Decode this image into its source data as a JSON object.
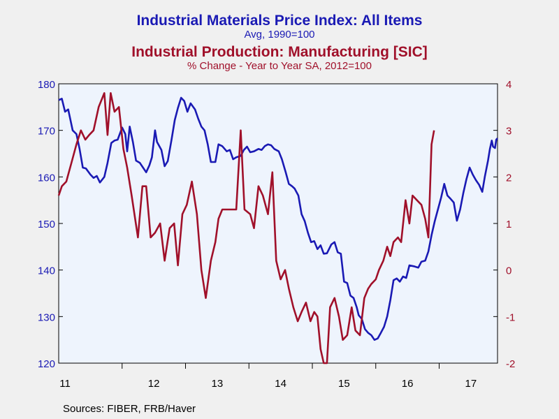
{
  "titles": {
    "line1": "Industrial Materials Price Index: All Items",
    "line2": "Avg, 1990=100",
    "line3": "Industrial Production: Manufacturing [SIC]",
    "line4": "% Change - Year to Year     SA, 2012=100"
  },
  "source": "Sources:  FIBER, FRB/Haver",
  "colors": {
    "left": "#1a1ab4",
    "right": "#a0102a",
    "plot_bg": "#eef4fd",
    "frame": "#000000"
  },
  "chart_data": {
    "type": "line",
    "x_labels": [
      "11",
      "12",
      "13",
      "14",
      "15",
      "16",
      "17"
    ],
    "x_domain": [
      2011.0,
      2017.92
    ],
    "y_left": {
      "ylim": [
        120,
        180
      ],
      "ticks": [
        "120",
        "130",
        "140",
        "150",
        "160",
        "170",
        "180"
      ]
    },
    "y_right": {
      "ylim": [
        -2,
        4
      ],
      "ticks": [
        "-2",
        "-1",
        "0",
        "1",
        "2",
        "3",
        "4"
      ]
    },
    "grid": false,
    "legend": "none",
    "series": [
      {
        "axis": "left",
        "color": "#1a1ab4",
        "points": [
          [
            2011.0,
            176.5
          ],
          [
            2011.05,
            176.8
          ],
          [
            2011.1,
            174.0
          ],
          [
            2011.15,
            174.5
          ],
          [
            2011.22,
            170.0
          ],
          [
            2011.28,
            169.2
          ],
          [
            2011.33,
            166.0
          ],
          [
            2011.38,
            162.0
          ],
          [
            2011.43,
            161.8
          ],
          [
            2011.5,
            160.5
          ],
          [
            2011.55,
            159.8
          ],
          [
            2011.6,
            160.2
          ],
          [
            2011.65,
            158.8
          ],
          [
            2011.72,
            160.0
          ],
          [
            2011.77,
            163.0
          ],
          [
            2011.83,
            167.3
          ],
          [
            2011.88,
            167.8
          ],
          [
            2011.93,
            168.0
          ],
          [
            2012.0,
            170.6
          ],
          [
            2012.05,
            169.2
          ],
          [
            2012.08,
            165.5
          ],
          [
            2012.12,
            170.8
          ],
          [
            2012.17,
            167.5
          ],
          [
            2012.22,
            163.5
          ],
          [
            2012.28,
            163.0
          ],
          [
            2012.33,
            162.0
          ],
          [
            2012.38,
            161.0
          ],
          [
            2012.43,
            162.5
          ],
          [
            2012.47,
            164.2
          ],
          [
            2012.52,
            170.0
          ],
          [
            2012.55,
            167.5
          ],
          [
            2012.62,
            165.8
          ],
          [
            2012.67,
            162.3
          ],
          [
            2012.72,
            163.4
          ],
          [
            2012.78,
            168.0
          ],
          [
            2012.83,
            172.2
          ],
          [
            2012.88,
            174.8
          ],
          [
            2012.93,
            177.0
          ],
          [
            2012.98,
            176.3
          ],
          [
            2013.03,
            174.0
          ],
          [
            2013.08,
            175.8
          ],
          [
            2013.15,
            174.5
          ],
          [
            2013.2,
            172.5
          ],
          [
            2013.25,
            170.8
          ],
          [
            2013.3,
            170.0
          ],
          [
            2013.35,
            167.0
          ],
          [
            2013.4,
            163.2
          ],
          [
            2013.47,
            163.2
          ],
          [
            2013.52,
            167.0
          ],
          [
            2013.58,
            166.6
          ],
          [
            2013.65,
            165.5
          ],
          [
            2013.7,
            165.8
          ],
          [
            2013.75,
            163.8
          ],
          [
            2013.8,
            164.2
          ],
          [
            2013.87,
            164.5
          ],
          [
            2013.92,
            165.8
          ],
          [
            2013.97,
            166.5
          ],
          [
            2014.02,
            165.3
          ],
          [
            2014.08,
            165.5
          ],
          [
            2014.15,
            166.0
          ],
          [
            2014.2,
            165.8
          ],
          [
            2014.25,
            166.6
          ],
          [
            2014.3,
            167.0
          ],
          [
            2014.35,
            166.8
          ],
          [
            2014.4,
            166.0
          ],
          [
            2014.47,
            165.5
          ],
          [
            2014.52,
            163.8
          ],
          [
            2014.58,
            161.0
          ],
          [
            2014.63,
            158.5
          ],
          [
            2014.68,
            158.0
          ],
          [
            2014.72,
            157.5
          ],
          [
            2014.78,
            156.0
          ],
          [
            2014.83,
            152.0
          ],
          [
            2014.88,
            150.5
          ],
          [
            2014.93,
            148.0
          ],
          [
            2014.98,
            146.0
          ],
          [
            2015.03,
            146.2
          ],
          [
            2015.08,
            144.5
          ],
          [
            2015.13,
            145.3
          ],
          [
            2015.18,
            143.5
          ],
          [
            2015.23,
            143.6
          ],
          [
            2015.3,
            145.5
          ],
          [
            2015.35,
            146.0
          ],
          [
            2015.4,
            143.8
          ],
          [
            2015.45,
            143.5
          ],
          [
            2015.5,
            137.5
          ],
          [
            2015.55,
            137.2
          ],
          [
            2015.6,
            134.5
          ],
          [
            2015.65,
            134.0
          ],
          [
            2015.7,
            132.0
          ],
          [
            2015.73,
            130.3
          ],
          [
            2015.78,
            129.5
          ],
          [
            2015.83,
            127.3
          ],
          [
            2015.88,
            126.5
          ],
          [
            2015.93,
            126.0
          ],
          [
            2015.98,
            125.0
          ],
          [
            2016.03,
            125.3
          ],
          [
            2016.08,
            126.5
          ],
          [
            2016.13,
            127.8
          ],
          [
            2016.18,
            130.0
          ],
          [
            2016.23,
            133.5
          ],
          [
            2016.28,
            137.8
          ],
          [
            2016.33,
            138.2
          ],
          [
            2016.38,
            137.5
          ],
          [
            2016.43,
            138.6
          ],
          [
            2016.48,
            138.3
          ],
          [
            2016.53,
            141.0
          ],
          [
            2016.6,
            140.8
          ],
          [
            2016.67,
            140.5
          ],
          [
            2016.72,
            141.8
          ],
          [
            2016.78,
            142.0
          ],
          [
            2016.83,
            144.0
          ],
          [
            2016.88,
            147.5
          ],
          [
            2016.93,
            150.5
          ],
          [
            2016.98,
            153.0
          ],
          [
            2017.03,
            155.5
          ],
          [
            2017.08,
            158.5
          ],
          [
            2017.13,
            156.0
          ],
          [
            2017.18,
            155.3
          ],
          [
            2017.23,
            154.5
          ],
          [
            2017.28,
            150.6
          ],
          [
            2017.33,
            153.0
          ],
          [
            2017.38,
            156.5
          ],
          [
            2017.43,
            159.5
          ],
          [
            2017.48,
            162.0
          ],
          [
            2017.53,
            160.5
          ],
          [
            2017.58,
            159.3
          ],
          [
            2017.63,
            158.3
          ],
          [
            2017.68,
            156.8
          ],
          [
            2017.72,
            160.0
          ],
          [
            2017.77,
            163.5
          ],
          [
            2017.8,
            166.0
          ],
          [
            2017.83,
            167.8
          ],
          [
            2017.85,
            166.5
          ],
          [
            2017.88,
            166.2
          ],
          [
            2017.9,
            168.0
          ],
          [
            2017.92,
            168.3
          ]
        ]
      },
      {
        "axis": "right",
        "color": "#a0102a",
        "points": [
          [
            2011.0,
            1.6
          ],
          [
            2011.05,
            1.8
          ],
          [
            2011.12,
            1.9
          ],
          [
            2011.2,
            2.3
          ],
          [
            2011.28,
            2.7
          ],
          [
            2011.35,
            3.0
          ],
          [
            2011.42,
            2.8
          ],
          [
            2011.48,
            2.9
          ],
          [
            2011.55,
            3.0
          ],
          [
            2011.63,
            3.5
          ],
          [
            2011.72,
            3.8
          ],
          [
            2011.77,
            2.9
          ],
          [
            2011.82,
            3.8
          ],
          [
            2011.88,
            3.4
          ],
          [
            2011.95,
            3.5
          ],
          [
            2012.02,
            2.6
          ],
          [
            2012.08,
            2.2
          ],
          [
            2012.15,
            1.6
          ],
          [
            2012.25,
            0.7
          ],
          [
            2012.32,
            1.8
          ],
          [
            2012.38,
            1.8
          ],
          [
            2012.45,
            0.7
          ],
          [
            2012.52,
            0.8
          ],
          [
            2012.6,
            1.0
          ],
          [
            2012.67,
            0.2
          ],
          [
            2012.75,
            0.9
          ],
          [
            2012.82,
            1.0
          ],
          [
            2012.88,
            0.1
          ],
          [
            2012.95,
            1.2
          ],
          [
            2013.02,
            1.4
          ],
          [
            2013.1,
            1.9
          ],
          [
            2013.18,
            1.2
          ],
          [
            2013.25,
            0.0
          ],
          [
            2013.32,
            -0.6
          ],
          [
            2013.4,
            0.2
          ],
          [
            2013.47,
            0.6
          ],
          [
            2013.52,
            1.1
          ],
          [
            2013.58,
            1.3
          ],
          [
            2013.65,
            1.3
          ],
          [
            2013.73,
            1.3
          ],
          [
            2013.8,
            1.3
          ],
          [
            2013.87,
            3.0
          ],
          [
            2013.93,
            1.3
          ],
          [
            2014.02,
            1.2
          ],
          [
            2014.08,
            0.9
          ],
          [
            2014.15,
            1.8
          ],
          [
            2014.22,
            1.6
          ],
          [
            2014.3,
            1.2
          ],
          [
            2014.37,
            2.1
          ],
          [
            2014.43,
            0.2
          ],
          [
            2014.5,
            -0.2
          ],
          [
            2014.57,
            0.0
          ],
          [
            2014.63,
            -0.4
          ],
          [
            2014.7,
            -0.8
          ],
          [
            2014.77,
            -1.1
          ],
          [
            2014.83,
            -0.9
          ],
          [
            2014.9,
            -0.7
          ],
          [
            2014.97,
            -1.1
          ],
          [
            2015.03,
            -0.9
          ],
          [
            2015.08,
            -1.0
          ],
          [
            2015.13,
            -1.7
          ],
          [
            2015.18,
            -2.0
          ],
          [
            2015.23,
            -2.0
          ],
          [
            2015.28,
            -0.8
          ],
          [
            2015.35,
            -0.6
          ],
          [
            2015.42,
            -1.0
          ],
          [
            2015.48,
            -1.5
          ],
          [
            2015.55,
            -1.4
          ],
          [
            2015.62,
            -0.8
          ],
          [
            2015.68,
            -1.3
          ],
          [
            2015.75,
            -1.4
          ],
          [
            2015.82,
            -0.6
          ],
          [
            2015.88,
            -0.4
          ],
          [
            2015.93,
            -0.3
          ],
          [
            2016.0,
            -0.2
          ],
          [
            2016.05,
            0.0
          ],
          [
            2016.12,
            0.2
          ],
          [
            2016.18,
            0.5
          ],
          [
            2016.23,
            0.3
          ],
          [
            2016.28,
            0.6
          ],
          [
            2016.35,
            0.7
          ],
          [
            2016.4,
            0.6
          ],
          [
            2016.47,
            1.5
          ],
          [
            2016.53,
            1.0
          ],
          [
            2016.58,
            1.6
          ],
          [
            2016.65,
            1.5
          ],
          [
            2016.72,
            1.4
          ],
          [
            2016.78,
            1.1
          ],
          [
            2016.83,
            0.7
          ],
          [
            2016.88,
            2.7
          ],
          [
            2016.92,
            3.0
          ]
        ]
      }
    ]
  }
}
